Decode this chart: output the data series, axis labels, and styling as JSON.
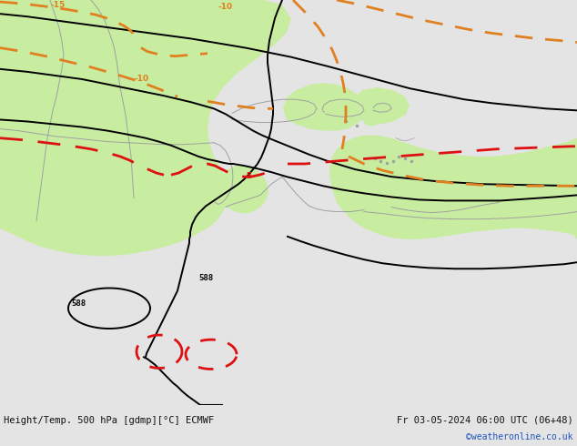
{
  "title_left": "Height/Temp. 500 hPa [gdmp][°C] ECMWF",
  "title_right": "Fr 03-05-2024 06:00 UTC (06+48)",
  "credit": "©weatheronline.co.uk",
  "bg_color": "#e4e4e4",
  "land_color": "#c8eda0",
  "coast_color": "#a0a0a0",
  "text_color": "#111111",
  "bottom_bar_color": "#d0d0d0",
  "black_color": "#000000",
  "orange_color": "#e08020",
  "red_color": "#dd1111",
  "credit_color": "#2255bb",
  "footer_fontsize": 7.5
}
